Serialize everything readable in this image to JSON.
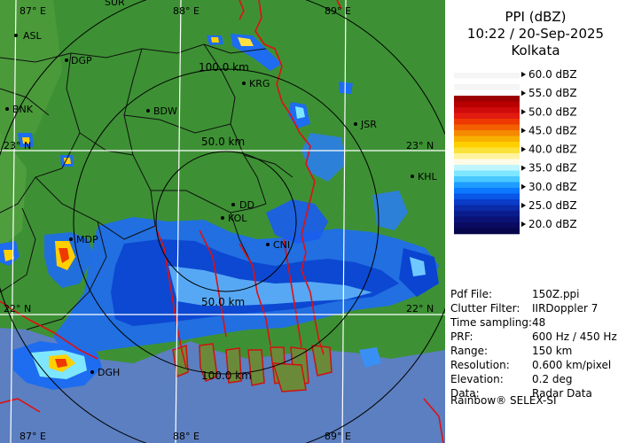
{
  "header": {
    "product": "PPI (dBZ)",
    "datetime": "10:22 / 20-Sep-2025",
    "station": "Kolkata"
  },
  "legend": {
    "labels": [
      "60.0 dBZ",
      "55.0 dBZ",
      "50.0 dBZ",
      "45.0 dBZ",
      "40.0 dBZ",
      "35.0 dBZ",
      "30.0 dBZ",
      "25.0 dBZ",
      "20.0 dBZ"
    ],
    "bands": [
      "#f5f5f5",
      "#ffffff",
      "#f5f5f5",
      "#ffffff",
      "#9c0000",
      "#b80000",
      "#cf0a0a",
      "#e21b10",
      "#ee3a00",
      "#f26000",
      "#f58a00",
      "#f8b000",
      "#ffd000",
      "#fbe23a",
      "#fff3a0",
      "#fffbe6",
      "#c0f5ff",
      "#7ee6ff",
      "#48c8ff",
      "#1e9cff",
      "#0a78ff",
      "#0a56e6",
      "#0a3cc8",
      "#0a2aa8",
      "#0a1c8c",
      "#0a1276",
      "#0a0a60",
      "#06064c"
    ]
  },
  "info": [
    {
      "key": "Pdf File:",
      "value": "150Z.ppi"
    },
    {
      "key": "Clutter Filter:",
      "value": "IIRDoppler 7"
    },
    {
      "key": "Time sampling:",
      "value": "48"
    },
    {
      "key": "PRF:",
      "value": "600 Hz / 450 Hz"
    },
    {
      "key": "Range:",
      "value": "150 km"
    },
    {
      "key": "Resolution:",
      "value": "0.600 km/pixel"
    },
    {
      "key": "Elevation:",
      "value": "0.2 deg"
    },
    {
      "key": "Data:",
      "value": "Radar Data"
    }
  ],
  "footer": "Rainbow® SELEX-SI",
  "map": {
    "grid_labels": {
      "top": [
        "87° E",
        "88° E",
        "89° E"
      ],
      "bottom": [
        "87° E",
        "88° E",
        "89° E"
      ],
      "right": [
        "23° N",
        "22° N"
      ],
      "left": [
        "23° N",
        "22° N"
      ]
    },
    "range_rings": [
      "100.0 km",
      "50.0 km",
      "50.0 km",
      "100.0 km"
    ],
    "cities": [
      "ASL",
      "DGP",
      "KRG",
      "BNK",
      "BDW",
      "JSR",
      "KHL",
      "DD",
      "KOL",
      "MDP",
      "CNI",
      "DGH",
      "SUR"
    ],
    "colors": {
      "land": "#3d9134",
      "sea": "#5b7fc0",
      "grid": "#ffffff",
      "border": "#e01010",
      "district": "#101010"
    }
  }
}
